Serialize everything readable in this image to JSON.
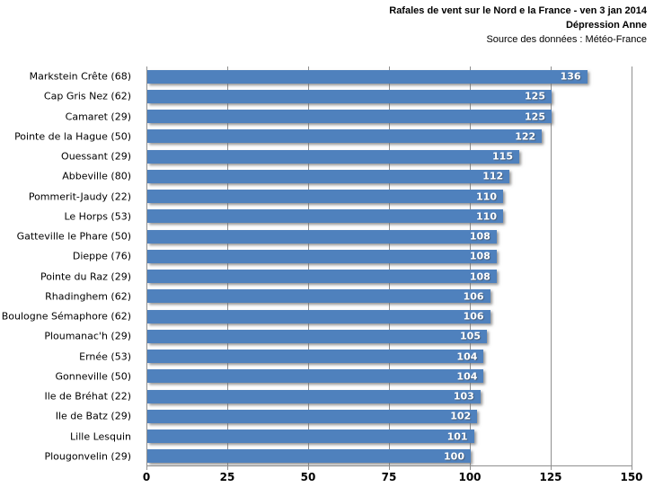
{
  "header": {
    "title": "Rafales de vent sur le Nord e la France - ven 3 jan 2014",
    "subtitle": "Dépression Anne",
    "source": "Source des données : Météo-France"
  },
  "chart_data": {
    "type": "bar",
    "orientation": "horizontal",
    "title": "Rafales de vent sur le Nord e la France - ven 3 jan 2014",
    "subtitle": "Dépression Anne",
    "source": "Source des données : Météo-France",
    "categories": [
      "Markstein Crête (68)",
      "Cap Gris Nez (62)",
      "Camaret (29)",
      "Pointe de la Hague (50)",
      "Ouessant (29)",
      "Abbeville (80)",
      "Pommerit-Jaudy (22)",
      "Le Horps (53)",
      "Gatteville le Phare (50)",
      "Dieppe (76)",
      "Pointe du Raz (29)",
      "Rhadinghem (62)",
      "Boulogne Sémaphore (62)",
      "Ploumanac'h (29)",
      "Ernée (53)",
      "Gonneville (50)",
      "Ile de Bréhat (22)",
      "Ile de Batz (29)",
      "Lille Lesquin",
      "Plougonvelin (29)"
    ],
    "values": [
      136,
      125,
      125,
      122,
      115,
      112,
      110,
      110,
      108,
      108,
      108,
      106,
      106,
      105,
      104,
      104,
      103,
      102,
      101,
      100
    ],
    "xlabel": "",
    "ylabel": "",
    "xlim": [
      0,
      150
    ],
    "xticks": [
      0,
      25,
      50,
      75,
      100,
      125,
      150
    ],
    "grid": true,
    "legend": false,
    "bar_color": "#4f81bd",
    "gridline_color": "#8f8f8f",
    "value_label_style": "inside-end-white"
  }
}
